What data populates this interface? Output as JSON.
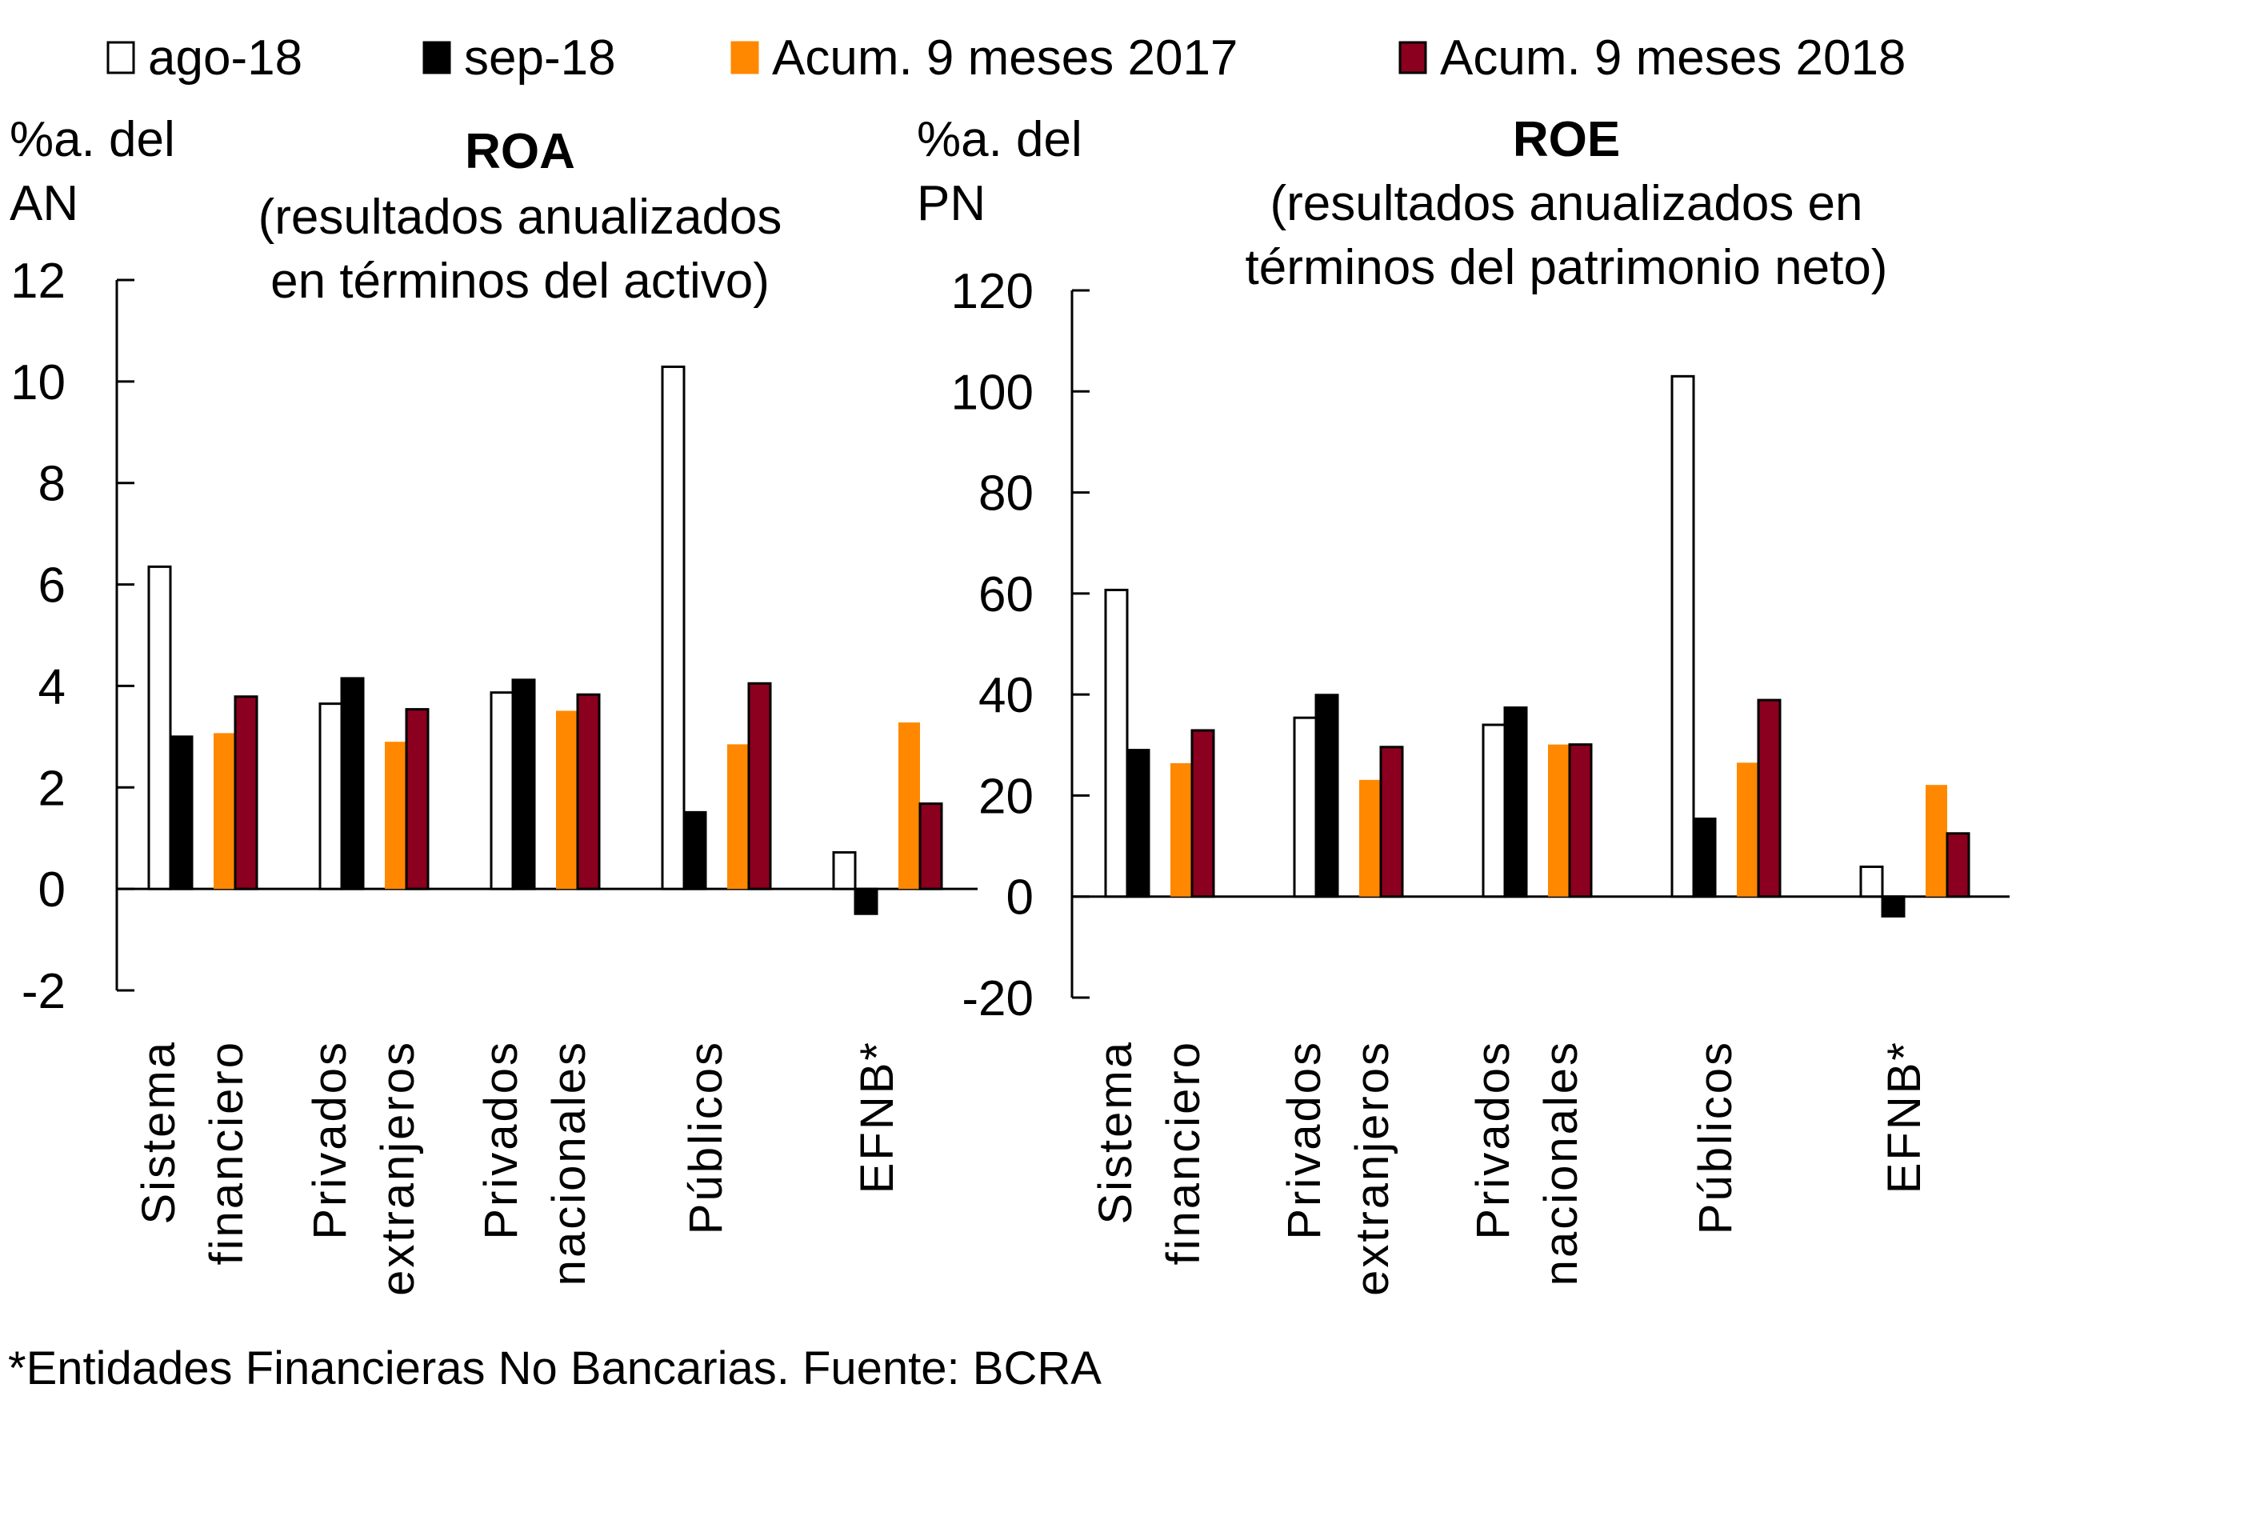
{
  "legend": [
    {
      "label": "ago-18",
      "fill": "#FFFFFF",
      "stroke": "#000000"
    },
    {
      "label": "sep-18",
      "fill": "#000000",
      "stroke": "#000000"
    },
    {
      "label": "Acum. 9 meses 2017",
      "fill": "#FF8800",
      "stroke": "#FF8800"
    },
    {
      "label": "Acum. 9 meses 2018",
      "fill": "#8B001E",
      "stroke": "#000000"
    }
  ],
  "footer": "*Entidades Financieras No Bancarias. Fuente: BCRA",
  "chart_data": [
    {
      "type": "bar",
      "title": "ROA",
      "subtitle": [
        "(resultados anualizados",
        "en términos del activo)"
      ],
      "ylabel": [
        "%a. del",
        "AN"
      ],
      "xlabel": "",
      "ylim": [
        -2,
        12
      ],
      "yticks": [
        -2,
        0,
        2,
        4,
        6,
        8,
        10,
        12
      ],
      "grid": false,
      "legend_position": "top",
      "categories": [
        [
          "Sistema",
          "financiero"
        ],
        [
          "Privados",
          "extranjeros"
        ],
        [
          "Privados",
          "nacionales"
        ],
        [
          "Públicos"
        ],
        [
          "EFNB*"
        ]
      ],
      "series": [
        {
          "name": "ago-18",
          "values": [
            6.35,
            3.65,
            3.87,
            10.29,
            0.72
          ]
        },
        {
          "name": "sep-18",
          "values": [
            3.0,
            4.15,
            4.12,
            1.51,
            -0.49
          ]
        },
        {
          "name": "Acum. 9 meses 2017",
          "values": [
            3.07,
            2.9,
            3.51,
            2.85,
            3.28
          ]
        },
        {
          "name": "Acum. 9 meses 2018",
          "values": [
            3.79,
            3.54,
            3.83,
            4.05,
            1.68
          ]
        }
      ]
    },
    {
      "type": "bar",
      "title": "ROE",
      "subtitle": [
        "(resultados anualizados en",
        "términos del patrimonio neto)"
      ],
      "ylabel": [
        "%a. del",
        "PN"
      ],
      "xlabel": "",
      "ylim": [
        -20,
        120
      ],
      "yticks": [
        -20,
        0,
        20,
        40,
        60,
        80,
        100,
        120
      ],
      "grid": false,
      "legend_position": "top",
      "categories": [
        [
          "Sistema",
          "financiero"
        ],
        [
          "Privados",
          "extranjeros"
        ],
        [
          "Privados",
          "nacionales"
        ],
        [
          "Públicos"
        ],
        [
          "EFNB*"
        ]
      ],
      "series": [
        {
          "name": "ago-18",
          "values": [
            60.7,
            35.4,
            34.0,
            103.0,
            5.9
          ]
        },
        {
          "name": "sep-18",
          "values": [
            29.0,
            39.9,
            37.4,
            15.4,
            -3.9
          ]
        },
        {
          "name": "Acum. 9 meses 2017",
          "values": [
            26.4,
            23.1,
            30.1,
            26.5,
            22.1
          ]
        },
        {
          "name": "Acum. 9 meses 2018",
          "values": [
            32.9,
            29.6,
            30.1,
            38.9,
            12.5
          ]
        }
      ]
    }
  ]
}
